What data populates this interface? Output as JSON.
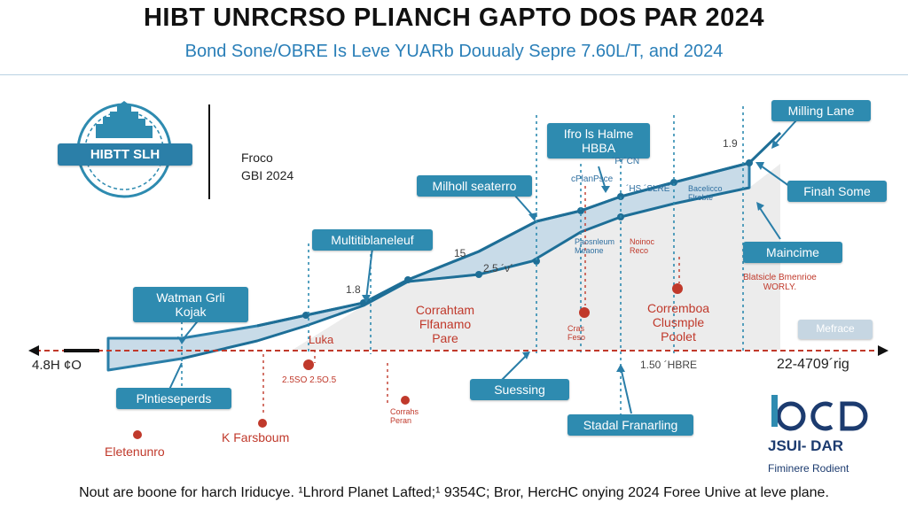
{
  "header": {
    "title": "HIBT UNRCRSO PLIANCH GAPTO DOS PAR 2024",
    "subtitle": "Bond Sone/OBRE Is Leve YUARb Douualy Sepre 7.60L/T, and 2024"
  },
  "badge": {
    "label": "HIBTT SLH"
  },
  "side_note": {
    "line1": "Froco",
    "line2": "GBI 2024"
  },
  "axis": {
    "left_label": "4.8H ¢O",
    "right_label": "22-4709´rig"
  },
  "value_labels": {
    "v1": "1.8",
    "v2": "15",
    "v3": "1.9",
    "v4": "1.50 ´HBRE",
    "v5": "2.5 ´ν´"
  },
  "callouts": [
    {
      "key": "milling",
      "text": "Milling Lane"
    },
    {
      "key": "fino",
      "text": "Ifro ls Halme\nHBBA"
    },
    {
      "key": "milholl",
      "text": "Milholl seaterro"
    },
    {
      "key": "multi",
      "text": "Multitiblaneleuf"
    },
    {
      "key": "watman",
      "text": "Watman Grli\nKojak"
    },
    {
      "key": "finah",
      "text": "Finah Some"
    },
    {
      "key": "maincime",
      "text": "Maincime"
    },
    {
      "key": "mefrace",
      "text": "Mefrace"
    },
    {
      "key": "plnt",
      "text": "Plntieseperds"
    },
    {
      "key": "suess",
      "text": "Suessing"
    },
    {
      "key": "stadal",
      "text": "Stadal Franarling"
    }
  ],
  "annotations": {
    "corrah": "Corrahtam\nFlfanamo\nPare",
    "correm": "Corremboa\nClusmple\nPoolet",
    "luka": "Luka",
    "elet": "Eletenunro",
    "kfars": "K Farsboum",
    "small_red_1": "2.5SO 2.5O.5",
    "small_red_2": "Corrahs\nPeran",
    "small_red_3": "Cras\nFeso",
    "small_red_4": "Noinoc\nReco",
    "small_grey_1": "cPlanPsce",
    "small_grey_2": "Paosnleum\nMeaone",
    "small_grey_3": "Bacelicco\nFlrebte",
    "worly": "Blatsicle Bmenrioe\nWORLY.",
    "hrs": "´Pr´CN",
    "hisr": "´HS ´SLRE"
  },
  "logo": {
    "mark": "iCCD",
    "name": "JSUI- DAR",
    "tagline": "Fiminere Rodient"
  },
  "footer": {
    "text": "Nout are boone for harch Iriducye. ¹Lhrord Planet Lafted;¹ 9354C; Bror, HercHC onying 2024 Foree Unive at leve plane."
  },
  "colors": {
    "accent": "#2e8bb0",
    "band": "#c8dbe8",
    "red": "#c0392b",
    "dark_line": "#1e6e96"
  }
}
